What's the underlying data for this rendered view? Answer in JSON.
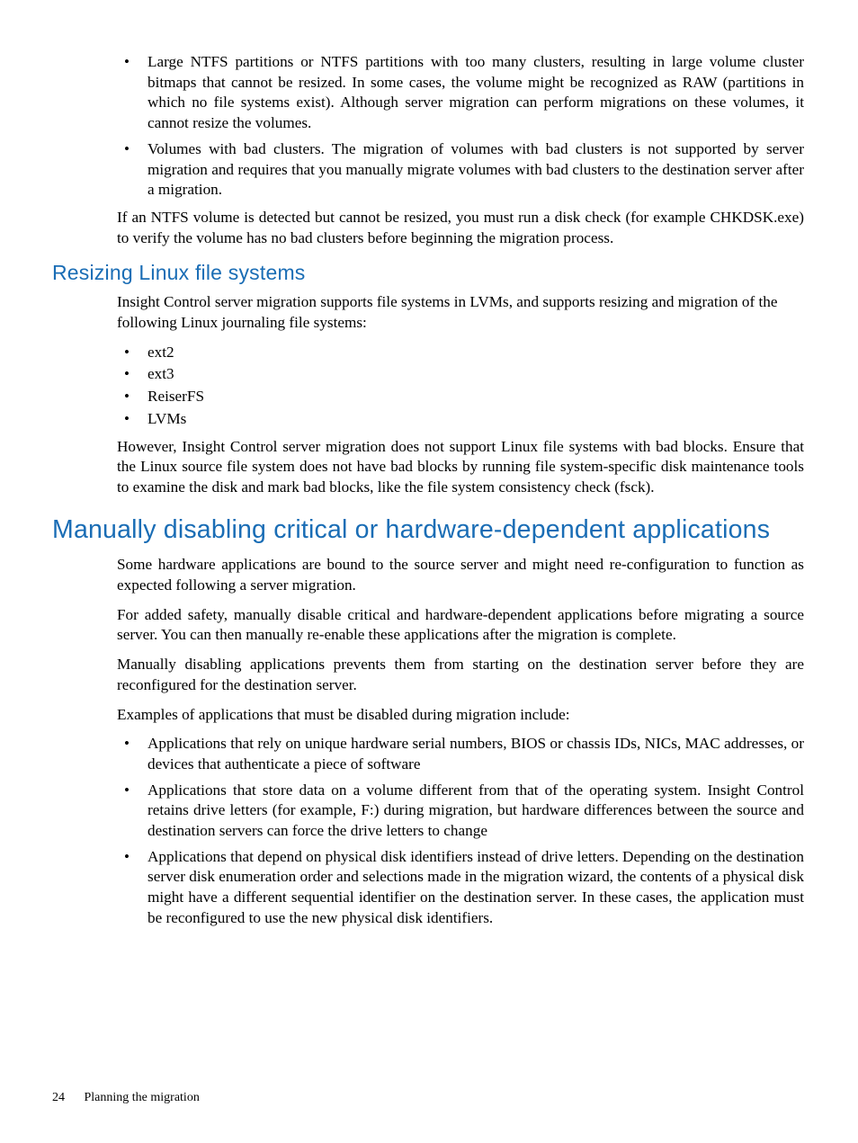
{
  "colors": {
    "heading": "#1a6db5",
    "body_text": "#000000",
    "background": "#ffffff"
  },
  "typography": {
    "body_family": "Palatino Linotype, Book Antiqua, Palatino, Georgia, serif",
    "body_size_pt": 13,
    "heading_family": "Futura, Trebuchet MS, Segoe UI, Arial, sans-serif",
    "h2_size_pt": 21,
    "h3_size_pt": 17
  },
  "top_list": {
    "items": [
      "Large NTFS partitions or NTFS partitions with too many clusters, resulting in large volume cluster bitmaps that cannot be resized. In some cases, the volume might be recognized as RAW (partitions in which no file systems exist). Although server migration can perform migrations on these volumes, it cannot resize the volumes.",
      "Volumes with bad clusters. The migration of volumes with bad clusters is not supported by server migration and requires that you manually migrate volumes with bad clusters to the destination server after a migration."
    ]
  },
  "top_para": "If an NTFS volume is detected but cannot be resized, you must run a disk check (for example CHKDSK.exe) to verify the volume has no bad clusters before beginning the migration process.",
  "section_linux": {
    "heading": "Resizing Linux file systems",
    "intro": "Insight Control server migration supports file systems in LVMs, and supports resizing and migration of the following Linux journaling file systems:",
    "items": [
      "ext2",
      "ext3",
      "ReiserFS",
      "LVMs"
    ],
    "outro": "However, Insight Control server migration does not support Linux file systems with bad blocks. Ensure that the Linux source file system does not have bad blocks by running file system-specific disk maintenance tools to examine the disk and mark bad blocks, like the file system consistency check (fsck)."
  },
  "section_manual": {
    "heading": "Manually disabling critical or hardware-dependent applications",
    "p1": "Some hardware applications are bound to the source server and might need re-configuration to function as expected following a server migration.",
    "p2": "For added safety, manually disable critical and hardware-dependent applications before migrating a source server. You can then manually re-enable these applications after the migration is complete.",
    "p3": "Manually disabling applications prevents them from starting on the destination server before they are reconfigured for the destination server.",
    "p4": "Examples of applications that must be disabled during migration include:",
    "items": [
      "Applications that rely on unique hardware serial numbers, BIOS or chassis IDs, NICs, MAC addresses, or devices that authenticate a piece of software",
      "Applications that store data on a volume different from that of the operating system. Insight Control retains drive letters (for example, F:) during migration, but hardware differences between the source and destination servers can force the drive letters to change",
      "Applications that depend on physical disk identifiers instead of drive letters. Depending on the destination server disk enumeration order and selections made in the migration wizard, the contents of a physical disk might have a different sequential identifier on the destination server. In these cases, the application must be reconfigured to use the new physical disk identifiers."
    ]
  },
  "footer": {
    "page_number": "24",
    "chapter": "Planning the migration"
  }
}
